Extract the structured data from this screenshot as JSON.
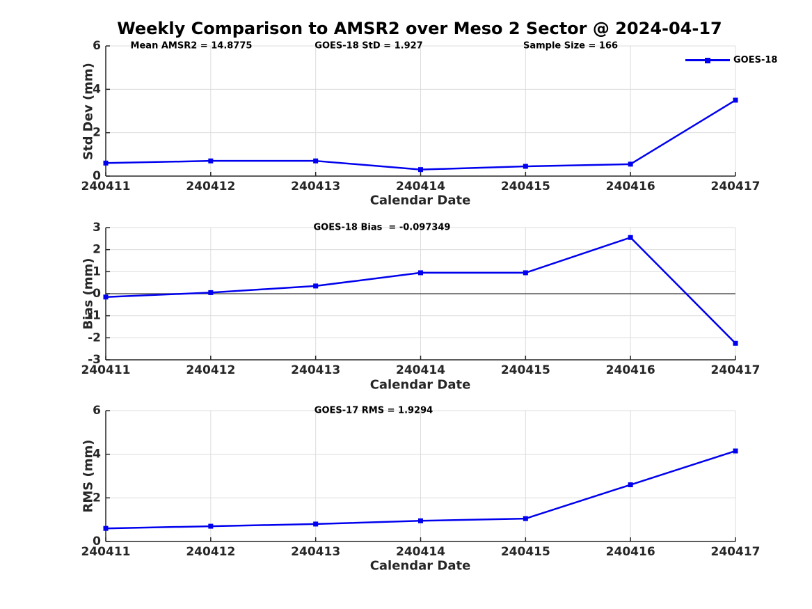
{
  "title": "Weekly Comparison to AMSR2 over Meso 2 Sector @ 2024-04-17",
  "colors": {
    "line": "#0000EE",
    "grid": "#DCDCDC",
    "axis": "#262626",
    "zero_line": "#555555",
    "text": "#000000",
    "tick_text": "#262626"
  },
  "chart_data": [
    {
      "type": "line",
      "name": "std-dev-panel",
      "annotations": [
        {
          "text": "Mean AMSR2 = 14.8775"
        },
        {
          "text": "GOES-18 StD = 1.927"
        },
        {
          "text": "Sample Size = 166"
        }
      ],
      "ylabel": "Std Dev (mm)",
      "xlabel": "Calendar Date",
      "ylim": [
        0,
        6
      ],
      "yticks": [
        0,
        2,
        4,
        6
      ],
      "grid": true,
      "legend": {
        "label": "GOES-18",
        "position": "top-right"
      },
      "categories": [
        "240411",
        "240412",
        "240413",
        "240414",
        "240415",
        "240416",
        "240417"
      ],
      "series": [
        {
          "name": "GOES-18",
          "values": [
            0.6,
            0.7,
            0.7,
            0.3,
            0.45,
            0.55,
            3.5
          ]
        }
      ]
    },
    {
      "type": "line",
      "name": "bias-panel",
      "annotations": [
        {
          "text": "GOES-18 Bias  = -0.097349"
        }
      ],
      "ylabel": "Bias (mm)",
      "xlabel": "Calendar Date",
      "ylim": [
        -3,
        3
      ],
      "yticks": [
        -3,
        -2,
        -1,
        0,
        1,
        2,
        3
      ],
      "grid": true,
      "zero_line": true,
      "categories": [
        "240411",
        "240412",
        "240413",
        "240414",
        "240415",
        "240416",
        "240417"
      ],
      "series": [
        {
          "name": "GOES-18",
          "values": [
            -0.15,
            0.05,
            0.35,
            0.95,
            0.95,
            2.55,
            -2.25
          ]
        }
      ]
    },
    {
      "type": "line",
      "name": "rms-panel",
      "annotations": [
        {
          "text": "GOES-17 RMS = 1.9294"
        }
      ],
      "ylabel": "RMS (mm)",
      "xlabel": "Calendar Date",
      "ylim": [
        0,
        6
      ],
      "yticks": [
        0,
        2,
        4,
        6
      ],
      "grid": true,
      "categories": [
        "240411",
        "240412",
        "240413",
        "240414",
        "240415",
        "240416",
        "240417"
      ],
      "series": [
        {
          "name": "GOES-18",
          "values": [
            0.6,
            0.7,
            0.8,
            0.95,
            1.05,
            2.6,
            4.15
          ]
        }
      ]
    }
  ]
}
